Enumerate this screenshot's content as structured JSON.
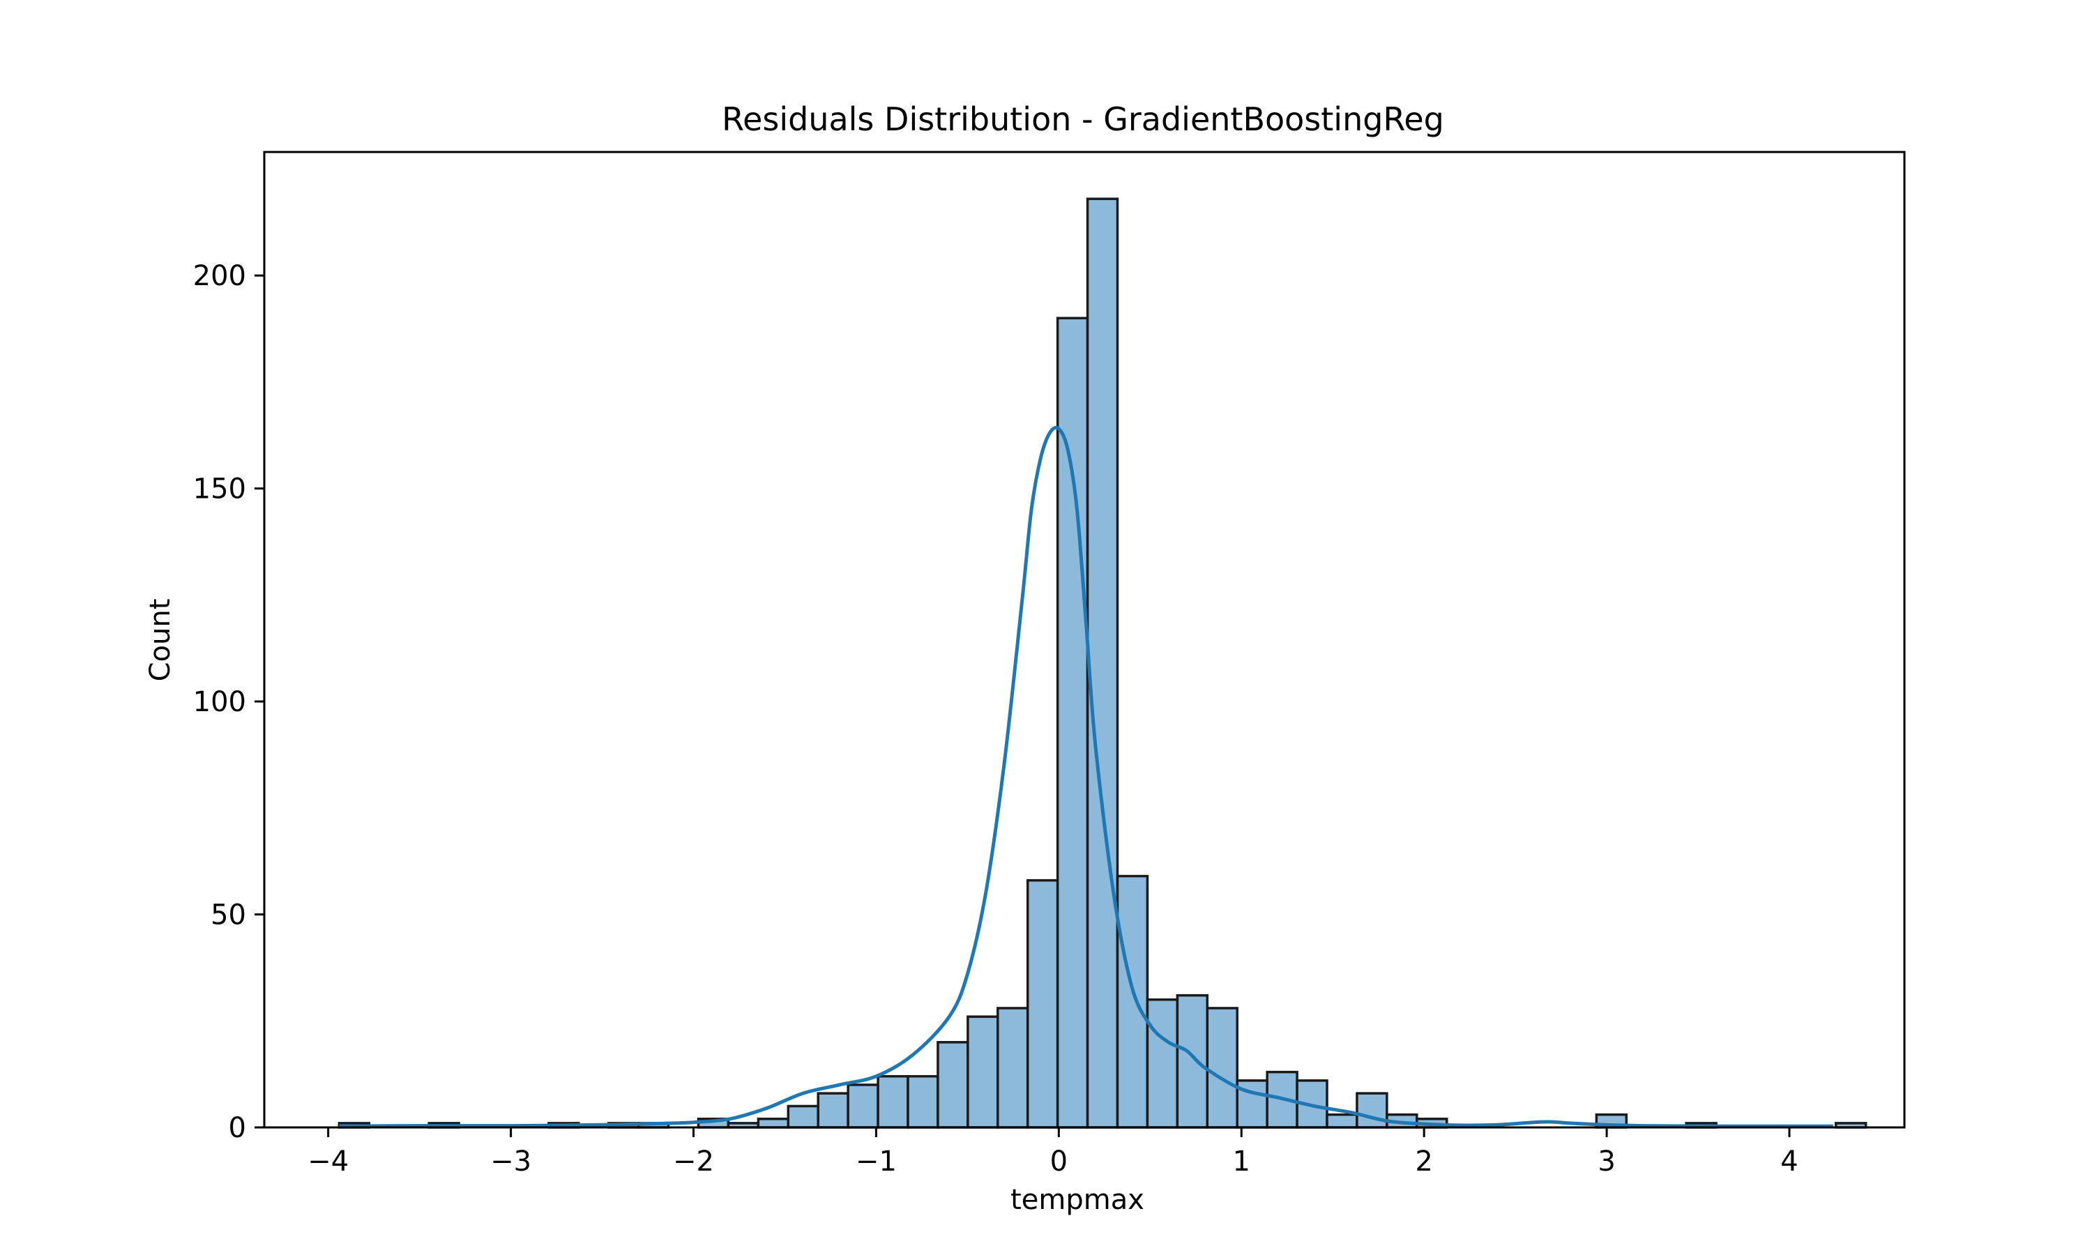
{
  "colors": {
    "bar_fill": "#8dbadb",
    "bar_edge": "#1a1a1a",
    "kde_line": "#1f77b4",
    "axes": "#000000",
    "background": "#ffffff"
  },
  "chart_data": {
    "type": "bar",
    "subtype": "histogram-with-kde",
    "title": "Residuals Distribution - GradientBoostingReg",
    "xlabel": "tempmax",
    "ylabel": "Count",
    "xlim": [
      -4.35,
      4.63
    ],
    "ylim": [
      0,
      229
    ],
    "xticks": [
      {
        "value": -4,
        "label": "−4"
      },
      {
        "value": -3,
        "label": "−3"
      },
      {
        "value": -2,
        "label": "−2"
      },
      {
        "value": -1,
        "label": "−1"
      },
      {
        "value": 0,
        "label": "0"
      },
      {
        "value": 1,
        "label": "1"
      },
      {
        "value": 2,
        "label": "2"
      },
      {
        "value": 3,
        "label": "3"
      },
      {
        "value": 4,
        "label": "4"
      }
    ],
    "yticks": [
      {
        "value": 0,
        "label": "0"
      },
      {
        "value": 50,
        "label": "50"
      },
      {
        "value": 100,
        "label": "100"
      },
      {
        "value": 150,
        "label": "150"
      },
      {
        "value": 200,
        "label": "200"
      }
    ],
    "grid": false,
    "bins": {
      "start": -3.94,
      "width": 0.1639,
      "counts": [
        1,
        0,
        0,
        1,
        0,
        0,
        0,
        1,
        0,
        1,
        1,
        0,
        2,
        1,
        2,
        5,
        8,
        10,
        12,
        12,
        20,
        26,
        28,
        58,
        190,
        218,
        59,
        30,
        31,
        28,
        11,
        13,
        11,
        3,
        8,
        3,
        2,
        0,
        0,
        0,
        0,
        0,
        3,
        0,
        0,
        1,
        0,
        0,
        0,
        0,
        1
      ]
    },
    "kde": {
      "x": [
        -3.94,
        -3.5,
        -3.0,
        -2.5,
        -2.2,
        -2.0,
        -1.8,
        -1.6,
        -1.4,
        -1.2,
        -1.0,
        -0.8,
        -0.6,
        -0.5,
        -0.4,
        -0.3,
        -0.2,
        -0.15,
        -0.1,
        -0.05,
        0.0,
        0.05,
        0.1,
        0.15,
        0.2,
        0.3,
        0.4,
        0.5,
        0.6,
        0.7,
        0.8,
        1.0,
        1.2,
        1.4,
        1.6,
        1.8,
        2.0,
        2.2,
        2.4,
        2.6,
        2.7,
        2.8,
        3.0,
        3.2,
        3.6,
        4.0,
        4.24
      ],
      "y": [
        0.3,
        0.4,
        0.4,
        0.6,
        0.9,
        1.2,
        2,
        4.5,
        8,
        10,
        12,
        17,
        26,
        36,
        55,
        85,
        124,
        145,
        157,
        163,
        164,
        159,
        145,
        118,
        90,
        55,
        33,
        24,
        20,
        18,
        14,
        9,
        7,
        5,
        3.5,
        1.5,
        0.8,
        0.5,
        0.6,
        1.2,
        1.3,
        1.0,
        0.6,
        0.4,
        0.3,
        0.3,
        0.3
      ]
    }
  }
}
